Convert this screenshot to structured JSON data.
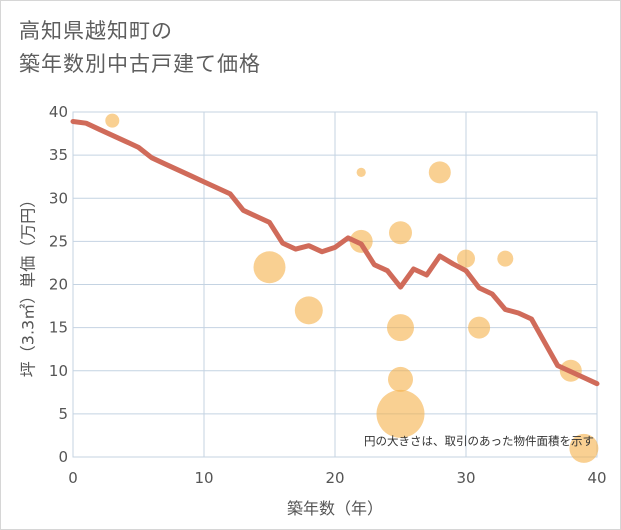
{
  "chart_data": {
    "type": "scatter",
    "title_lines": [
      "高知県越知町の",
      "築年数別中古戸建て価格"
    ],
    "xlabel": "築年数（年）",
    "ylabel": "坪（3.3㎡）単価（万円）",
    "xlim": [
      0,
      40
    ],
    "ylim": [
      0,
      40
    ],
    "x_ticks": [
      0,
      10,
      20,
      30,
      40
    ],
    "y_ticks": [
      0,
      5,
      10,
      15,
      20,
      25,
      30,
      35,
      40
    ],
    "grid": true,
    "note": "円の大きさは、取引のあった物件面積を示す",
    "colors": {
      "bubble": "#f5b04a",
      "line": "#d06b5a",
      "grid": "#c4d3e2",
      "plot_border": "#c4d3e2"
    },
    "bubbles": [
      {
        "x": 3,
        "y": 39,
        "size": 0.6
      },
      {
        "x": 15,
        "y": 22,
        "size": 2.4
      },
      {
        "x": 18,
        "y": 17,
        "size": 2.0
      },
      {
        "x": 22,
        "y": 33,
        "size": 0.12
      },
      {
        "x": 22,
        "y": 25,
        "size": 1.5
      },
      {
        "x": 25,
        "y": 26,
        "size": 1.5
      },
      {
        "x": 25,
        "y": 15,
        "size": 1.9
      },
      {
        "x": 25,
        "y": 9,
        "size": 1.7
      },
      {
        "x": 25,
        "y": 5,
        "size": 4.0
      },
      {
        "x": 28,
        "y": 33,
        "size": 1.4
      },
      {
        "x": 30,
        "y": 23,
        "size": 1.0
      },
      {
        "x": 31,
        "y": 15,
        "size": 1.4
      },
      {
        "x": 33,
        "y": 23,
        "size": 0.8
      },
      {
        "x": 38,
        "y": 10,
        "size": 1.4
      },
      {
        "x": 39,
        "y": 1,
        "size": 2.1
      }
    ],
    "trend_line": {
      "x": [
        0,
        1,
        2,
        3,
        4,
        5,
        6,
        7,
        8,
        9,
        10,
        11,
        12,
        13,
        14,
        15,
        16,
        17,
        18,
        19,
        20,
        21,
        22,
        23,
        24,
        25,
        26,
        27,
        28,
        29,
        30,
        31,
        32,
        33,
        34,
        35,
        36,
        37,
        38,
        39,
        40
      ],
      "y": [
        38.9,
        38.7,
        38.0,
        37.3,
        36.6,
        35.9,
        34.7,
        34.0,
        33.3,
        32.6,
        31.9,
        31.2,
        30.5,
        28.6,
        27.9,
        27.2,
        24.8,
        24.1,
        24.5,
        23.8,
        24.3,
        25.4,
        24.7,
        22.3,
        21.6,
        19.7,
        21.8,
        21.1,
        23.3,
        22.4,
        21.6,
        19.6,
        18.9,
        17.1,
        16.7,
        16.0,
        13.3,
        10.6,
        9.9,
        9.2,
        8.5
      ]
    }
  }
}
